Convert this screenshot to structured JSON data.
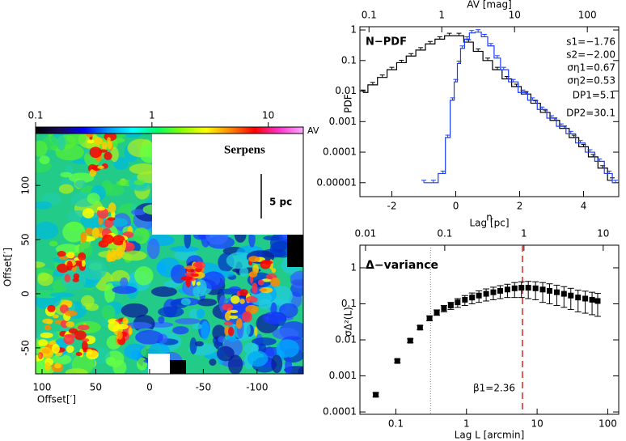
{
  "chart_data": [
    {
      "type": "image",
      "title": "Serpens",
      "scale_bar_label": "5 pc",
      "xlabel": "Offset[′]",
      "ylabel": "Offset[′]",
      "xlim": [
        106,
        -143
      ],
      "ylim": [
        -74,
        148
      ],
      "xticks": [
        100,
        50,
        0,
        -50,
        -100
      ],
      "yticks": [
        -50,
        0,
        50,
        100
      ],
      "colorbar": {
        "label": "AV",
        "lim": [
          0.1,
          20
        ],
        "log": true,
        "ticks": [
          0.1,
          1,
          10
        ],
        "colors": [
          "#000000",
          "#1a0a5a",
          "#0000ff",
          "#0099ff",
          "#00ffff",
          "#00ff66",
          "#88ff00",
          "#ffff00",
          "#ff8800",
          "#ff0000",
          "#ff33cc",
          "#ffaaff"
        ]
      }
    },
    {
      "type": "line",
      "step": true,
      "title": "N−PDF",
      "xlabel": "η",
      "ylabel": "PDF",
      "x2label": "AV [mag]",
      "annotations": [
        "s1=−1.76",
        "s2=−2.00",
        "ση1=0.67",
        "ση2=0.53",
        "DP1=5.1",
        "DP2=30.1"
      ],
      "xlim": [
        -3,
        5.1
      ],
      "xticks": [
        -2,
        0,
        2,
        4
      ],
      "x2lim": [
        0.075,
        270
      ],
      "x2log": true,
      "x2ticks": [
        0.1,
        1,
        10,
        100
      ],
      "ylim": [
        3.5e-06,
        1.28
      ],
      "ylog": true,
      "yticks": [
        1e-05,
        0.0001,
        0.001,
        0.01,
        0.1,
        1
      ],
      "series": [
        {
          "color": "#000000",
          "x": [
            -2.9,
            -2.6,
            -2.3,
            -2.0,
            -1.7,
            -1.4,
            -1.1,
            -0.8,
            -0.5,
            -0.2,
            0.1,
            0.4,
            0.7,
            1.0,
            1.3,
            1.6,
            1.9,
            2.2,
            2.5,
            2.8,
            3.1,
            3.4,
            3.7,
            4.0,
            4.3,
            4.6,
            4.9
          ],
          "values": [
            0.009,
            0.016,
            0.028,
            0.05,
            0.085,
            0.14,
            0.22,
            0.35,
            0.5,
            0.65,
            0.65,
            0.4,
            0.2,
            0.1,
            0.05,
            0.025,
            0.014,
            0.008,
            0.004,
            0.002,
            0.0011,
            0.0006,
            0.0003,
            0.00015,
            7e-05,
            3e-05,
            1.2e-05
          ]
        },
        {
          "color": "#1a3cff",
          "x": [
            -1.0,
            -0.7,
            -0.4,
            -0.25,
            -0.1,
            0.0,
            0.1,
            0.2,
            0.35,
            0.5,
            0.7,
            0.9,
            1.1,
            1.3,
            1.5,
            1.8,
            2.1,
            2.4,
            2.7,
            3.0,
            3.3,
            3.6,
            3.9,
            4.2,
            4.5,
            4.8,
            5.0
          ],
          "values": [
            1e-05,
            1e-05,
            2e-05,
            0.0003,
            0.005,
            0.02,
            0.08,
            0.25,
            0.5,
            0.8,
            0.85,
            0.6,
            0.3,
            0.12,
            0.05,
            0.02,
            0.009,
            0.005,
            0.0025,
            0.0013,
            0.0007,
            0.0004,
            0.0002,
            0.0001,
            5e-05,
            2e-05,
            1e-05
          ]
        }
      ]
    },
    {
      "type": "scatter",
      "title": "Δ−variance",
      "annotation": "β1=2.36",
      "xlabel": "Lag L [arcmin]",
      "ylabel": "σΔ²(L)",
      "x2label": "Lag [pc]",
      "xlim": [
        0.031,
        143
      ],
      "xlog": true,
      "xticks": [
        0.1,
        1,
        10,
        100
      ],
      "x2lim": [
        0.0085,
        15.7
      ],
      "x2log": true,
      "x2ticks": [
        0.01,
        0.1,
        1,
        10
      ],
      "ylim": [
        8.6e-05,
        4.25
      ],
      "ylog": true,
      "yticks": [
        0.0001,
        0.001,
        0.01,
        0.1,
        1
      ],
      "vlines": [
        {
          "value": 0.31,
          "color": "#888888"
        },
        {
          "value": 6.2,
          "color": "#e02020"
        }
      ],
      "color": "#000000",
      "x": [
        0.052,
        0.105,
        0.16,
        0.22,
        0.3,
        0.38,
        0.48,
        0.6,
        0.75,
        0.95,
        1.2,
        1.5,
        1.9,
        2.4,
        3,
        3.8,
        4.8,
        6,
        7.5,
        9.5,
        12,
        15,
        19,
        24,
        30,
        38,
        48,
        60,
        72
      ],
      "values": [
        0.0003,
        0.0026,
        0.0095,
        0.022,
        0.04,
        0.058,
        0.075,
        0.09,
        0.11,
        0.13,
        0.15,
        0.17,
        0.19,
        0.21,
        0.23,
        0.25,
        0.27,
        0.28,
        0.28,
        0.27,
        0.25,
        0.23,
        0.21,
        0.19,
        0.17,
        0.15,
        0.14,
        0.13,
        0.12
      ],
      "errors": [
        4e-05,
        0.0003,
        0.0012,
        0.003,
        0.006,
        0.01,
        0.015,
        0.02,
        0.03,
        0.04,
        0.05,
        0.06,
        0.07,
        0.08,
        0.09,
        0.1,
        0.12,
        0.13,
        0.14,
        0.14,
        0.14,
        0.13,
        0.12,
        0.11,
        0.1,
        0.09,
        0.085,
        0.08,
        0.075
      ]
    }
  ]
}
